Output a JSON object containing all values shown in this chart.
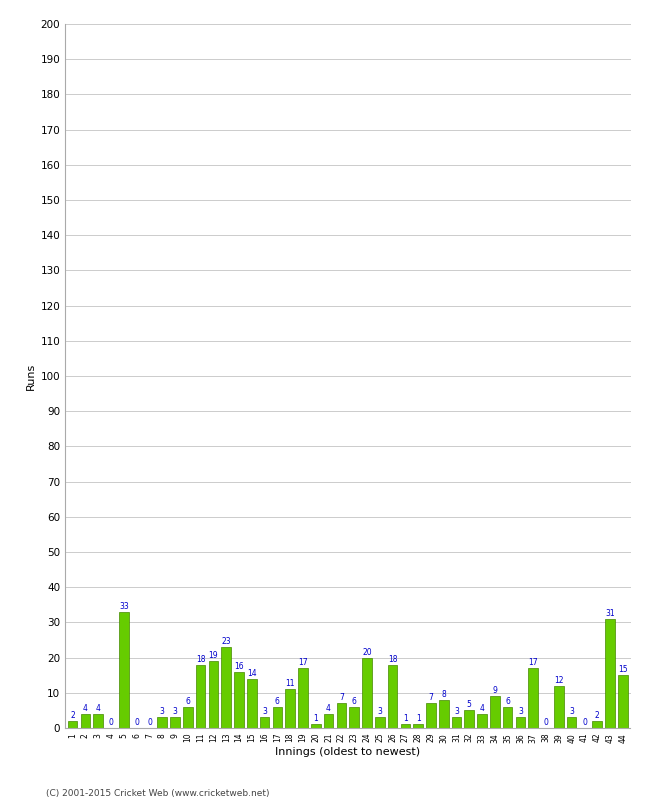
{
  "innings": [
    1,
    2,
    3,
    4,
    5,
    6,
    7,
    8,
    9,
    10,
    11,
    12,
    13,
    14,
    15,
    16,
    17,
    18,
    19,
    20,
    21,
    22,
    23,
    24,
    25,
    26,
    27,
    28,
    29,
    30,
    31,
    32,
    33,
    34,
    35,
    36,
    37,
    38,
    39,
    40,
    41,
    42,
    43,
    44
  ],
  "runs": [
    2,
    4,
    4,
    0,
    33,
    0,
    0,
    3,
    3,
    6,
    18,
    19,
    23,
    16,
    14,
    3,
    6,
    11,
    17,
    1,
    4,
    7,
    6,
    20,
    3,
    18,
    1,
    1,
    7,
    8,
    3,
    5,
    4,
    9,
    6,
    3,
    17,
    0,
    12,
    3,
    0,
    2,
    31,
    15
  ],
  "bar_color": "#66cc00",
  "bar_edge_color": "#448800",
  "label_color": "#0000cc",
  "ylabel": "Runs",
  "xlabel": "Innings (oldest to newest)",
  "ylim": [
    0,
    200
  ],
  "yticks": [
    0,
    10,
    20,
    30,
    40,
    50,
    60,
    70,
    80,
    90,
    100,
    110,
    120,
    130,
    140,
    150,
    160,
    170,
    180,
    190,
    200
  ],
  "background_color": "#ffffff",
  "grid_color": "#cccccc",
  "footer": "(C) 2001-2015 Cricket Web (www.cricketweb.net)"
}
